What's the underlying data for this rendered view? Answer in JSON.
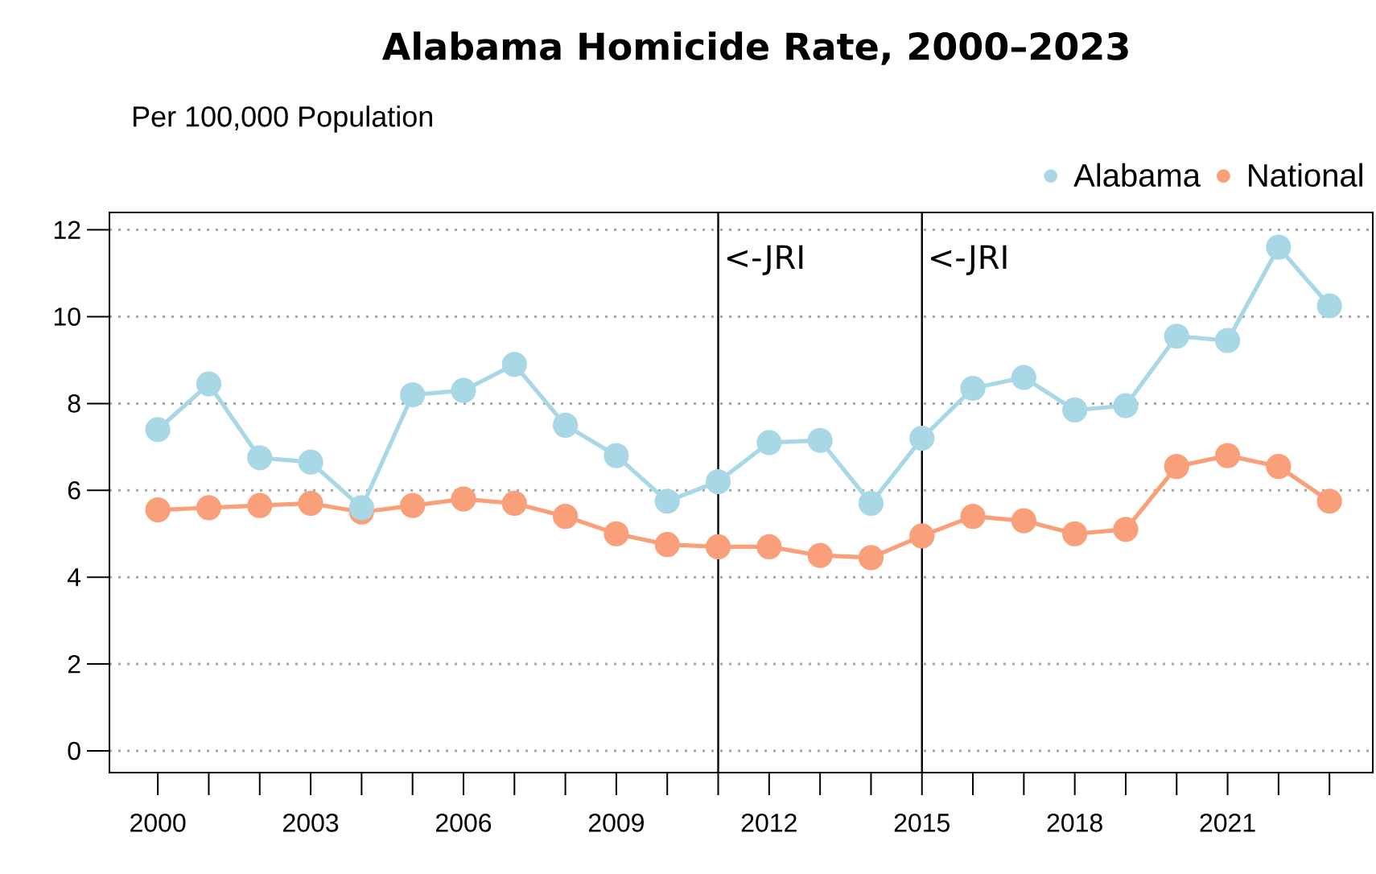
{
  "chart_data": {
    "type": "line",
    "title": "Alabama Homicide Rate, 2000–2023",
    "subtitle": "Per 100,000 Population",
    "x": [
      2000,
      2001,
      2002,
      2003,
      2004,
      2005,
      2006,
      2007,
      2008,
      2009,
      2010,
      2011,
      2012,
      2013,
      2014,
      2015,
      2016,
      2017,
      2018,
      2019,
      2020,
      2021,
      2022,
      2023
    ],
    "series": [
      {
        "name": "Alabama",
        "color": "#a8d8e6",
        "values": [
          7.4,
          8.45,
          6.75,
          6.65,
          5.6,
          8.2,
          8.3,
          8.9,
          7.5,
          6.8,
          5.75,
          6.2,
          7.1,
          7.15,
          5.7,
          7.2,
          8.35,
          8.6,
          7.85,
          7.95,
          9.55,
          9.45,
          11.6,
          10.25
        ]
      },
      {
        "name": "National",
        "color": "#f9a07a",
        "values": [
          5.55,
          5.6,
          5.65,
          5.7,
          5.5,
          5.65,
          5.8,
          5.7,
          5.4,
          5.0,
          4.75,
          4.7,
          4.7,
          4.5,
          4.45,
          4.95,
          5.4,
          5.3,
          5.0,
          5.1,
          6.55,
          6.8,
          6.55,
          5.75
        ]
      }
    ],
    "xlim": [
      1999.05,
      2023.85
    ],
    "ylim": [
      -0.5,
      12.4
    ],
    "xticks": [
      2000,
      {
        "value": 2001,
        "label": null
      },
      {
        "value": 2002,
        "label": null
      },
      2003,
      {
        "value": 2004,
        "label": null
      },
      {
        "value": 2005,
        "label": null
      },
      2006,
      {
        "value": 2007,
        "label": null
      },
      {
        "value": 2008,
        "label": null
      },
      2009,
      {
        "value": 2010,
        "label": null
      },
      {
        "value": 2011,
        "label": null
      },
      2012,
      {
        "value": 2013,
        "label": null
      },
      {
        "value": 2014,
        "label": null
      },
      2015,
      {
        "value": 2016,
        "label": null
      },
      {
        "value": 2017,
        "label": null
      },
      2018,
      {
        "value": 2019,
        "label": null
      },
      {
        "value": 2020,
        "label": null
      },
      2021,
      {
        "value": 2022,
        "label": null
      },
      {
        "value": 2023,
        "label": null
      }
    ],
    "yticks": [
      0,
      2,
      4,
      6,
      8,
      10,
      12
    ],
    "ref_lines": [
      {
        "axis": "x",
        "value": 2011,
        "label": "<-JRI",
        "color": "#000000"
      },
      {
        "axis": "x",
        "value": 2015,
        "label": "<-JRI",
        "color": "#000000"
      }
    ],
    "grid": "y",
    "legend": "top right",
    "marker": "circle",
    "line_style": "solid"
  }
}
